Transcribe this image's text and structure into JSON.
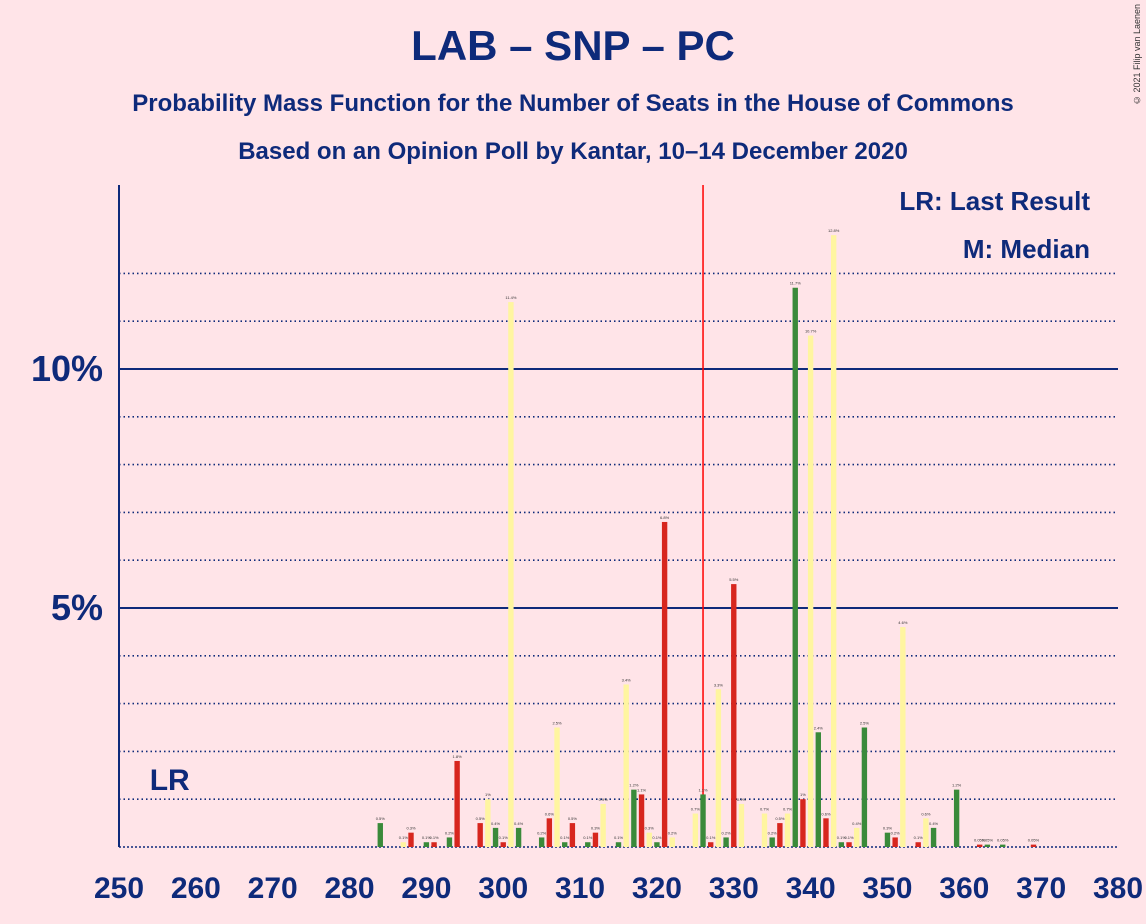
{
  "title": "LAB – SNP – PC",
  "subtitle1": "Probability Mass Function for the Number of Seats in the House of Commons",
  "subtitle2": "Based on an Opinion Poll by Kantar, 10–14 December 2020",
  "copyright": "© 2021 Filip van Laenen",
  "legend": {
    "lr": "LR: Last Result",
    "m": "M: Median"
  },
  "lr_label": "LR",
  "colors": {
    "background": "#ffe4e8",
    "text": "#0e2a7a",
    "red": "#d7261e",
    "yellow": "#fff5a0",
    "green": "#3a8a3a",
    "median": "#ff0000"
  },
  "chart_data": {
    "type": "bar",
    "xlim": [
      250,
      380
    ],
    "ylim": [
      0,
      14
    ],
    "x_ticks": [
      250,
      260,
      270,
      280,
      290,
      300,
      310,
      320,
      330,
      340,
      350,
      360,
      370,
      380
    ],
    "y_ticks": [
      {
        "value": 5,
        "label": "5%"
      },
      {
        "value": 10,
        "label": "10%"
      }
    ],
    "median": 326,
    "last_result": 254,
    "bars": [
      {
        "x": 284,
        "color": "green",
        "value": 0.5
      },
      {
        "x": 287,
        "color": "yellow",
        "value": 0.1
      },
      {
        "x": 288,
        "color": "red",
        "value": 0.3
      },
      {
        "x": 290,
        "color": "green",
        "value": 0.1
      },
      {
        "x": 291,
        "color": "red",
        "value": 0.1
      },
      {
        "x": 293,
        "color": "green",
        "value": 0.2
      },
      {
        "x": 294,
        "color": "red",
        "value": 1.8
      },
      {
        "x": 297,
        "color": "red",
        "value": 0.5
      },
      {
        "x": 298,
        "color": "yellow",
        "value": 1.0
      },
      {
        "x": 299,
        "color": "green",
        "value": 0.4
      },
      {
        "x": 300,
        "color": "red",
        "value": 0.1
      },
      {
        "x": 301,
        "color": "yellow",
        "value": 11.4
      },
      {
        "x": 302,
        "color": "green",
        "value": 0.4
      },
      {
        "x": 305,
        "color": "green",
        "value": 0.2
      },
      {
        "x": 306,
        "color": "red",
        "value": 0.6
      },
      {
        "x": 307,
        "color": "yellow",
        "value": 2.5
      },
      {
        "x": 308,
        "color": "green",
        "value": 0.1
      },
      {
        "x": 309,
        "color": "red",
        "value": 0.5
      },
      {
        "x": 311,
        "color": "green",
        "value": 0.1
      },
      {
        "x": 312,
        "color": "red",
        "value": 0.3
      },
      {
        "x": 313,
        "color": "yellow",
        "value": 0.9
      },
      {
        "x": 315,
        "color": "green",
        "value": 0.1
      },
      {
        "x": 316,
        "color": "yellow",
        "value": 3.4
      },
      {
        "x": 317,
        "color": "green",
        "value": 1.2
      },
      {
        "x": 318,
        "color": "red",
        "value": 1.1
      },
      {
        "x": 319,
        "color": "yellow",
        "value": 0.3
      },
      {
        "x": 320,
        "color": "green",
        "value": 0.1
      },
      {
        "x": 321,
        "color": "red",
        "value": 6.8
      },
      {
        "x": 322,
        "color": "yellow",
        "value": 0.2
      },
      {
        "x": 325,
        "color": "yellow",
        "value": 0.7
      },
      {
        "x": 326,
        "color": "green",
        "value": 1.1
      },
      {
        "x": 327,
        "color": "red",
        "value": 0.1
      },
      {
        "x": 328,
        "color": "yellow",
        "value": 3.3
      },
      {
        "x": 329,
        "color": "green",
        "value": 0.2
      },
      {
        "x": 330,
        "color": "red",
        "value": 5.5
      },
      {
        "x": 331,
        "color": "yellow",
        "value": 0.9
      },
      {
        "x": 334,
        "color": "yellow",
        "value": 0.7
      },
      {
        "x": 335,
        "color": "green",
        "value": 0.2
      },
      {
        "x": 336,
        "color": "red",
        "value": 0.5
      },
      {
        "x": 337,
        "color": "yellow",
        "value": 0.7
      },
      {
        "x": 338,
        "color": "green",
        "value": 11.7
      },
      {
        "x": 339,
        "color": "red",
        "value": 1.0
      },
      {
        "x": 340,
        "color": "yellow",
        "value": 10.7
      },
      {
        "x": 341,
        "color": "green",
        "value": 2.4
      },
      {
        "x": 342,
        "color": "red",
        "value": 0.6
      },
      {
        "x": 343,
        "color": "yellow",
        "value": 12.8
      },
      {
        "x": 344,
        "color": "green",
        "value": 0.1
      },
      {
        "x": 345,
        "color": "red",
        "value": 0.1
      },
      {
        "x": 346,
        "color": "yellow",
        "value": 0.4
      },
      {
        "x": 347,
        "color": "green",
        "value": 2.5
      },
      {
        "x": 350,
        "color": "green",
        "value": 0.3
      },
      {
        "x": 351,
        "color": "red",
        "value": 0.2
      },
      {
        "x": 352,
        "color": "yellow",
        "value": 4.6
      },
      {
        "x": 354,
        "color": "red",
        "value": 0.1
      },
      {
        "x": 355,
        "color": "yellow",
        "value": 0.6
      },
      {
        "x": 356,
        "color": "green",
        "value": 0.4
      },
      {
        "x": 359,
        "color": "green",
        "value": 1.2
      },
      {
        "x": 362,
        "color": "red",
        "value": 0.05
      },
      {
        "x": 363,
        "color": "green",
        "value": 0.05
      },
      {
        "x": 365,
        "color": "green",
        "value": 0.05
      },
      {
        "x": 369,
        "color": "red",
        "value": 0.05
      }
    ]
  }
}
